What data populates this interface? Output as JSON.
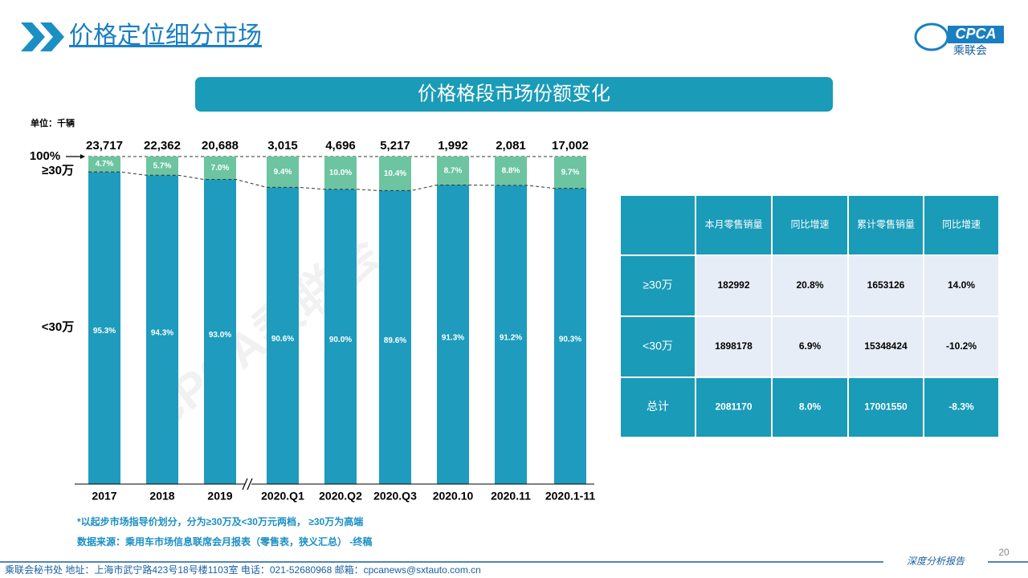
{
  "header": {
    "title": "价格定位细分市场",
    "logo": "CPCA",
    "logo_sub": "乘联会"
  },
  "banner": "价格格段市场份额变化",
  "watermark": "CPCA乘联会",
  "chart_data": {
    "type": "stacked-bar",
    "unit": "单位：千辆",
    "categories": [
      "2017",
      "2018",
      "2019",
      "2020.Q1",
      "2020.Q2",
      "2020.Q3",
      "2020.10",
      "2020.11",
      "2020.1-11"
    ],
    "series": [
      {
        "name": "<30万",
        "color": "#1e9bbd",
        "values": [
          95.3,
          94.3,
          93.0,
          90.6,
          90.0,
          89.6,
          91.3,
          91.2,
          90.3
        ],
        "value_labels": [
          "95.3%",
          "94.3%",
          "93.0%",
          "90.6%",
          "90.0%",
          "89.6%",
          "91.3%",
          "91.2%",
          "90.3%"
        ]
      },
      {
        "name": "≥30万",
        "color": "#6cc4a1",
        "values": [
          4.7,
          5.7,
          7.0,
          9.4,
          10.0,
          10.4,
          8.7,
          8.8,
          9.7
        ],
        "value_labels": [
          "4.7%",
          "5.7%",
          "7.0%",
          "9.4%",
          "10.0%",
          "10.4%",
          "8.7%",
          "8.8%",
          "9.7%"
        ]
      }
    ],
    "totals": {
      "values": [
        23717,
        22362,
        20688,
        3015,
        4696,
        5217,
        1992,
        2081,
        17002
      ],
      "value_labels": [
        "23,717",
        "22,362",
        "20,688",
        "3,015",
        "4,696",
        "5,217",
        "1,992",
        "2,081",
        "17,002"
      ]
    },
    "ylim": [
      0,
      100
    ],
    "yticks": [
      {
        "value": 100,
        "label": "100%"
      }
    ]
  },
  "notes": [
    "*以起步市场指导价划分，分为≥30万及<30万元两档，  ≥30万为高端",
    "数据来源：乘用车市场信息联席会月报表（零售表，狭义汇总） -终稿"
  ],
  "table": {
    "columns": [
      "本月零售销量",
      "同比增速",
      "累计零售销量",
      "同比增速"
    ],
    "rows": [
      {
        "label": "≥30万",
        "cells": [
          "182992",
          "20.8%",
          "1653126",
          "14.0%"
        ]
      },
      {
        "label": "<30万",
        "cells": [
          "1898178",
          "6.9%",
          "15348424",
          "-10.2%"
        ]
      },
      {
        "label": "总计",
        "cells": [
          "2081170",
          "8.0%",
          "17001550",
          "-8.3%"
        ]
      }
    ]
  },
  "footer": {
    "address": "乘联会秘书处   地址：上海市武宁路423号18号楼1103室     电话：021-52680968     邮箱：cpcanews@sxtauto.com.cn",
    "tag": "深度分析报告",
    "page": "20"
  }
}
